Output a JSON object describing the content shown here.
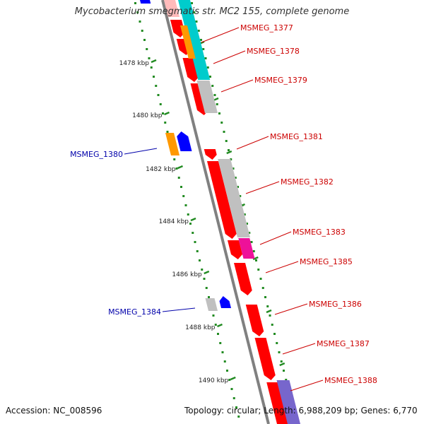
{
  "title": "Mycobacterium smegmatis str. MC2 155, complete genome",
  "footer": {
    "accession": "Accession: NC_008596",
    "topology": "Topology: circular; Length: 6,988,209 bp; Genes: 6,770"
  },
  "colors": {
    "forward_label": "#cc0000",
    "reverse_label": "#0000aa",
    "backbone": "#808080",
    "tick": "#228b22",
    "red": "#ff0000",
    "cyan": "#00cccc",
    "orange": "#ff9900",
    "grey": "#c0c0c0",
    "blue": "#0000ff",
    "magenta": "#ee1199",
    "purple": "#7766cc",
    "pink": "#ffbbbb"
  },
  "kbp_ticks": [
    "1478 kbp",
    "1480 kbp",
    "1482 kbp",
    "1484 kbp",
    "1486 kbp",
    "1488 kbp",
    "1490 kbp"
  ],
  "genes": [
    {
      "name": "MSMEG_1377",
      "strand": "forward"
    },
    {
      "name": "MSMEG_1378",
      "strand": "forward"
    },
    {
      "name": "MSMEG_1379",
      "strand": "forward"
    },
    {
      "name": "MSMEG_1380",
      "strand": "reverse"
    },
    {
      "name": "MSMEG_1381",
      "strand": "forward"
    },
    {
      "name": "MSMEG_1382",
      "strand": "forward"
    },
    {
      "name": "MSMEG_1383",
      "strand": "forward"
    },
    {
      "name": "MSMEG_1384",
      "strand": "reverse"
    },
    {
      "name": "MSMEG_1385",
      "strand": "forward"
    },
    {
      "name": "MSMEG_1386",
      "strand": "forward"
    },
    {
      "name": "MSMEG_1387",
      "strand": "forward"
    },
    {
      "name": "MSMEG_1388",
      "strand": "forward"
    }
  ]
}
